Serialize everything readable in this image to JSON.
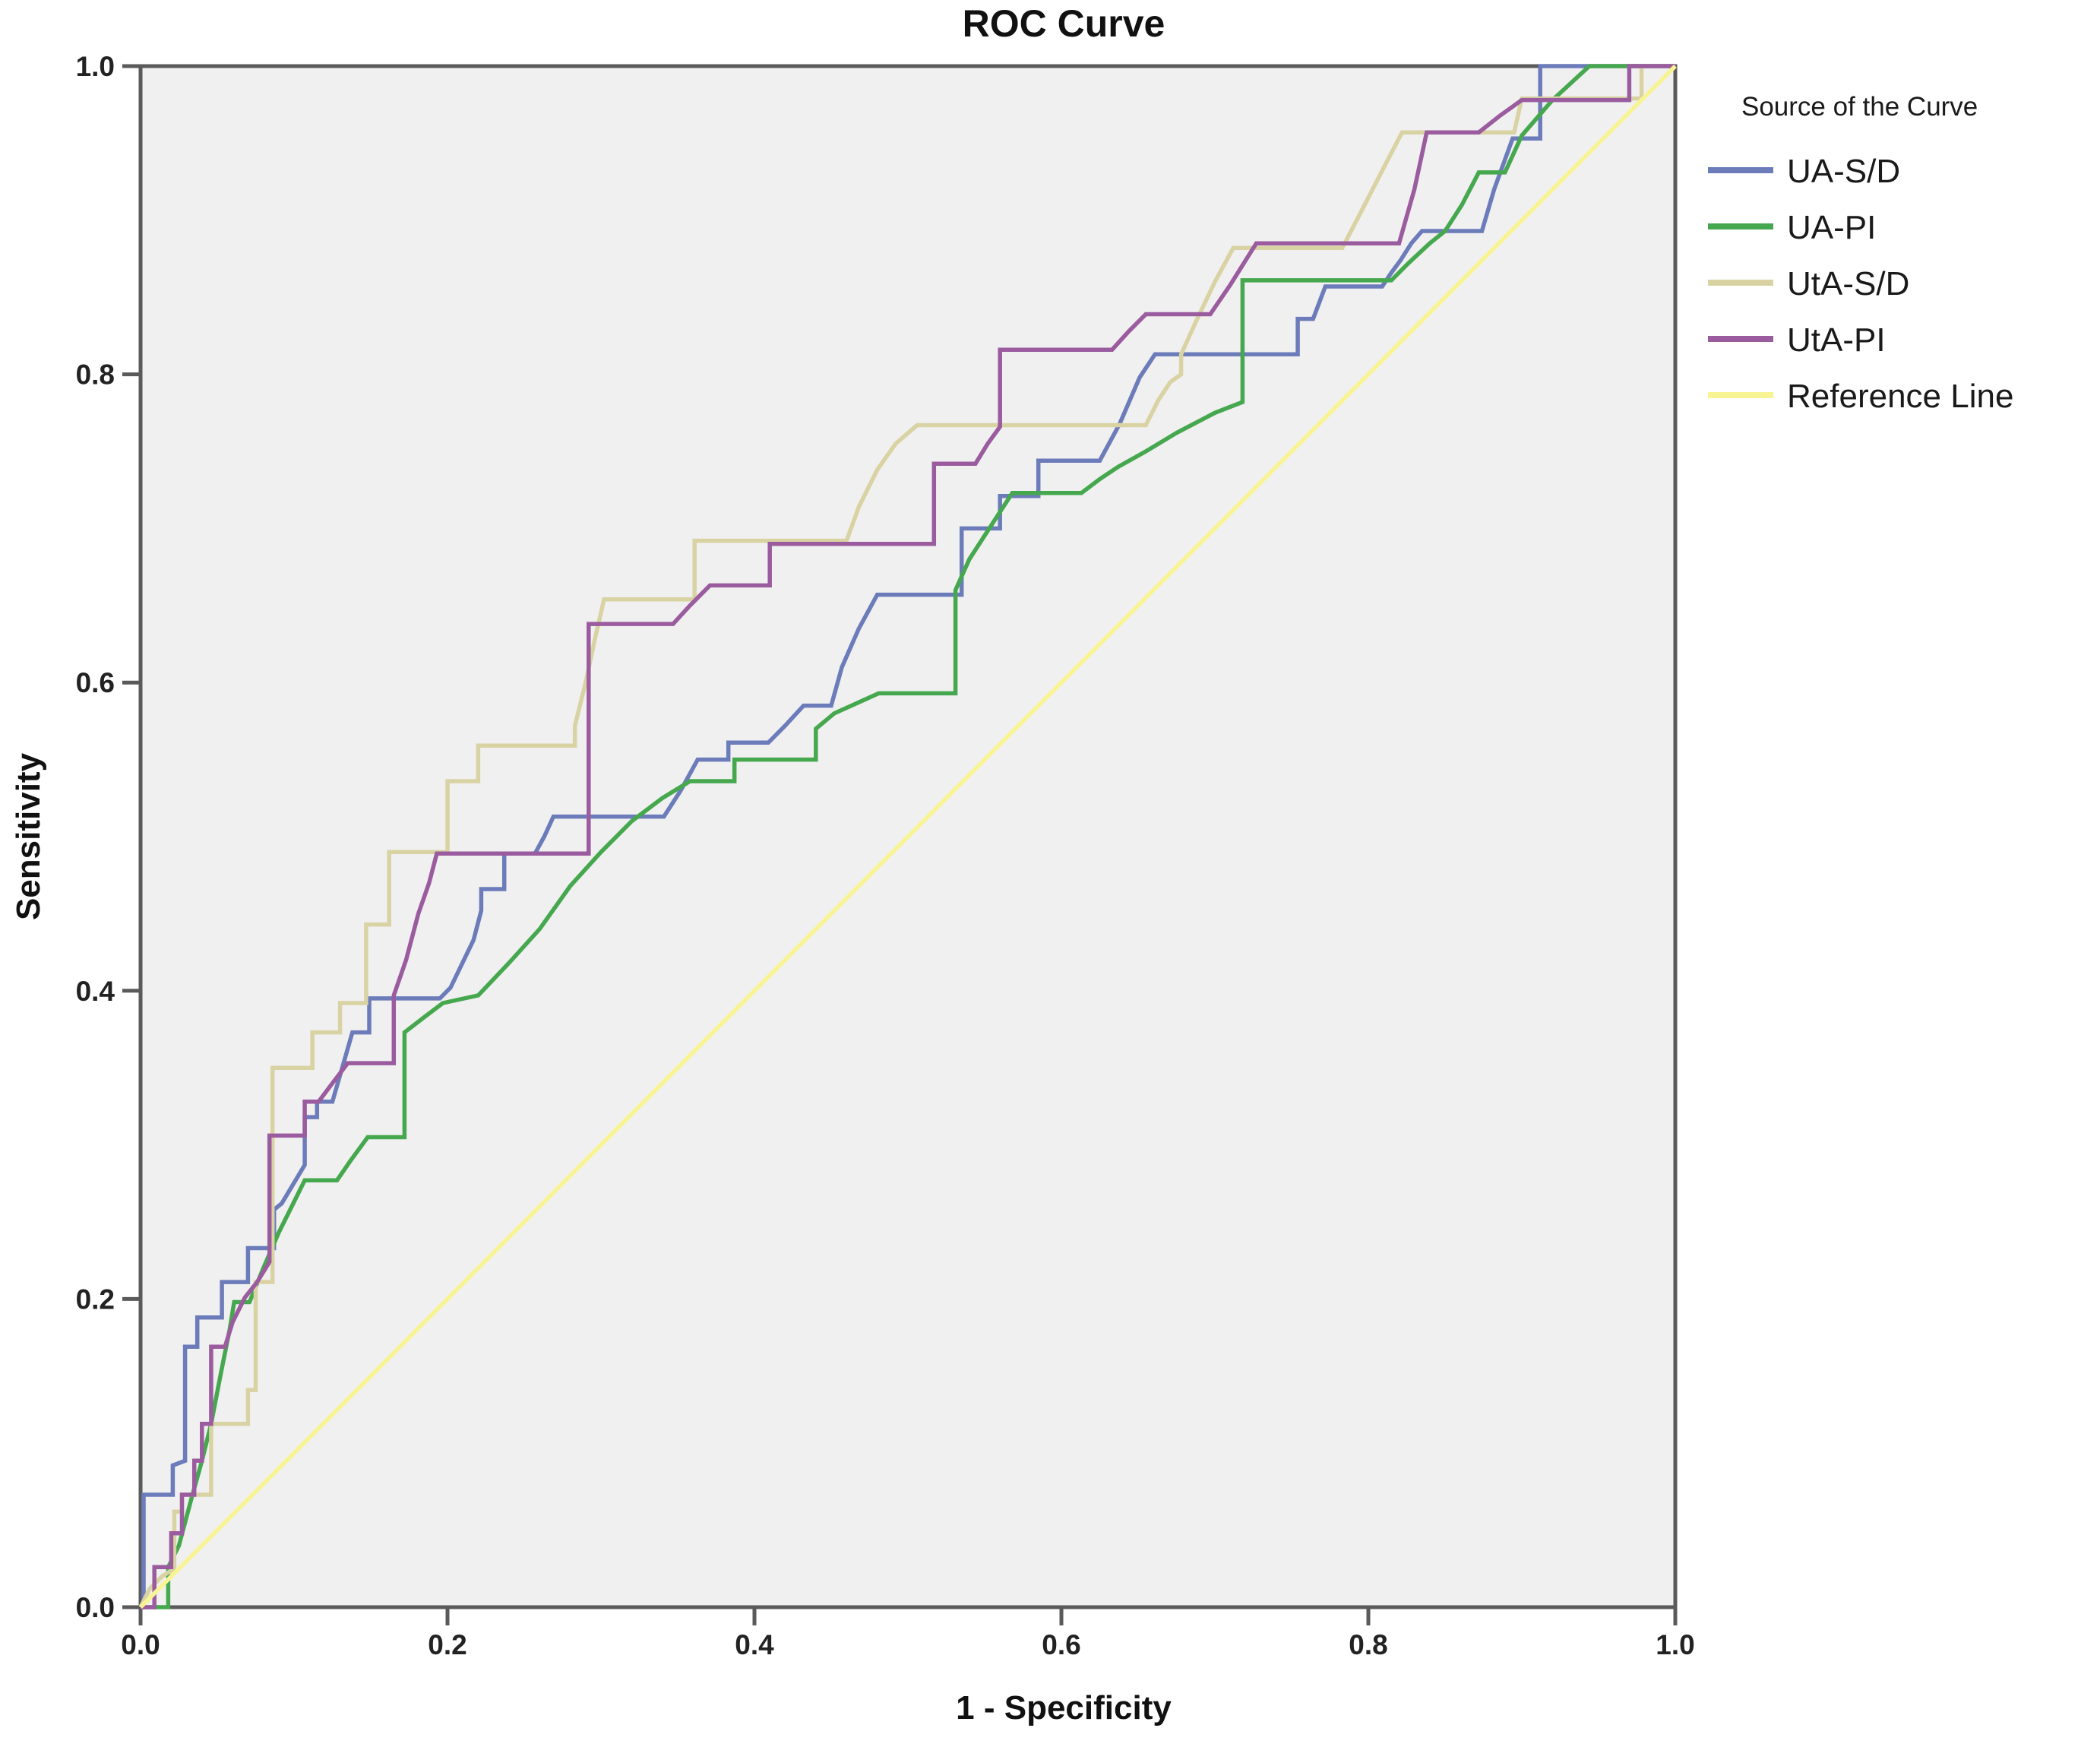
{
  "chart_data": {
    "type": "line",
    "subtype": "roc-step-curves",
    "title": "ROC Curve",
    "xlabel": "1 - Specificity",
    "ylabel": "Sensitivity",
    "xlim": [
      0.0,
      1.0
    ],
    "ylim": [
      0.0,
      1.0
    ],
    "x_ticks": [
      0.0,
      0.2,
      0.4,
      0.6,
      0.8,
      1.0
    ],
    "y_ticks": [
      0.0,
      0.2,
      0.4,
      0.6,
      0.8,
      1.0
    ],
    "x_tick_labels": [
      "0.0",
      "0.2",
      "0.4",
      "0.6",
      "0.8",
      "1.0"
    ],
    "y_tick_labels": [
      "0.0",
      "0.2",
      "0.4",
      "0.6",
      "0.8",
      "1.0"
    ],
    "grid": false,
    "plot_background": "#f0f0f0",
    "border_color": "#5a5a5a",
    "legend_position": "right",
    "legend_title": "Source of the Curve",
    "series": [
      {
        "name": "UA-S/D",
        "color": "#6c7cba",
        "points": [
          [
            0,
            0
          ],
          [
            0.002,
            0
          ],
          [
            0.002,
            0.073
          ],
          [
            0.021,
            0.073
          ],
          [
            0.021,
            0.092
          ],
          [
            0.029,
            0.095
          ],
          [
            0.029,
            0.169
          ],
          [
            0.037,
            0.169
          ],
          [
            0.037,
            0.188
          ],
          [
            0.053,
            0.188
          ],
          [
            0.053,
            0.211
          ],
          [
            0.07,
            0.211
          ],
          [
            0.07,
            0.233
          ],
          [
            0.087,
            0.233
          ],
          [
            0.087,
            0.258
          ],
          [
            0.092,
            0.262
          ],
          [
            0.107,
            0.287
          ],
          [
            0.107,
            0.318
          ],
          [
            0.115,
            0.318
          ],
          [
            0.115,
            0.328
          ],
          [
            0.125,
            0.328
          ],
          [
            0.132,
            0.352
          ],
          [
            0.138,
            0.373
          ],
          [
            0.149,
            0.373
          ],
          [
            0.149,
            0.395
          ],
          [
            0.195,
            0.395
          ],
          [
            0.202,
            0.402
          ],
          [
            0.217,
            0.433
          ],
          [
            0.222,
            0.452
          ],
          [
            0.222,
            0.466
          ],
          [
            0.237,
            0.466
          ],
          [
            0.237,
            0.489
          ],
          [
            0.257,
            0.489
          ],
          [
            0.263,
            0.5
          ],
          [
            0.269,
            0.513
          ],
          [
            0.341,
            0.513
          ],
          [
            0.352,
            0.53
          ],
          [
            0.363,
            0.55
          ],
          [
            0.383,
            0.55
          ],
          [
            0.383,
            0.561
          ],
          [
            0.409,
            0.561
          ],
          [
            0.42,
            0.572
          ],
          [
            0.432,
            0.585
          ],
          [
            0.45,
            0.585
          ],
          [
            0.457,
            0.61
          ],
          [
            0.468,
            0.635
          ],
          [
            0.48,
            0.657
          ],
          [
            0.535,
            0.657
          ],
          [
            0.535,
            0.7
          ],
          [
            0.56,
            0.7
          ],
          [
            0.56,
            0.721
          ],
          [
            0.585,
            0.721
          ],
          [
            0.585,
            0.744
          ],
          [
            0.625,
            0.744
          ],
          [
            0.638,
            0.768
          ],
          [
            0.651,
            0.798
          ],
          [
            0.661,
            0.813
          ],
          [
            0.754,
            0.813
          ],
          [
            0.754,
            0.836
          ],
          [
            0.764,
            0.836
          ],
          [
            0.772,
            0.857
          ],
          [
            0.809,
            0.857
          ],
          [
            0.815,
            0.866
          ],
          [
            0.821,
            0.874
          ],
          [
            0.828,
            0.885
          ],
          [
            0.835,
            0.893
          ],
          [
            0.874,
            0.893
          ],
          [
            0.882,
            0.92
          ],
          [
            0.894,
            0.953
          ],
          [
            0.912,
            0.953
          ],
          [
            0.912,
            1
          ],
          [
            1,
            1
          ]
        ]
      },
      {
        "name": "UA-PI",
        "color": "#46a84e",
        "points": [
          [
            0,
            0
          ],
          [
            0.018,
            0
          ],
          [
            0.018,
            0.026
          ],
          [
            0.025,
            0.04
          ],
          [
            0.033,
            0.07
          ],
          [
            0.04,
            0.095
          ],
          [
            0.046,
            0.119
          ],
          [
            0.052,
            0.15
          ],
          [
            0.058,
            0.18
          ],
          [
            0.061,
            0.198
          ],
          [
            0.071,
            0.198
          ],
          [
            0.08,
            0.22
          ],
          [
            0.09,
            0.243
          ],
          [
            0.1,
            0.263
          ],
          [
            0.107,
            0.277
          ],
          [
            0.128,
            0.277
          ],
          [
            0.137,
            0.29
          ],
          [
            0.148,
            0.305
          ],
          [
            0.172,
            0.305
          ],
          [
            0.172,
            0.373
          ],
          [
            0.185,
            0.383
          ],
          [
            0.197,
            0.392
          ],
          [
            0.22,
            0.397
          ],
          [
            0.24,
            0.418
          ],
          [
            0.26,
            0.44
          ],
          [
            0.28,
            0.468
          ],
          [
            0.3,
            0.49
          ],
          [
            0.32,
            0.51
          ],
          [
            0.34,
            0.525
          ],
          [
            0.358,
            0.536
          ],
          [
            0.387,
            0.536
          ],
          [
            0.387,
            0.55
          ],
          [
            0.44,
            0.55
          ],
          [
            0.44,
            0.57
          ],
          [
            0.452,
            0.58
          ],
          [
            0.481,
            0.593
          ],
          [
            0.531,
            0.593
          ],
          [
            0.531,
            0.66
          ],
          [
            0.54,
            0.68
          ],
          [
            0.553,
            0.7
          ],
          [
            0.568,
            0.723
          ],
          [
            0.613,
            0.723
          ],
          [
            0.625,
            0.732
          ],
          [
            0.637,
            0.74
          ],
          [
            0.655,
            0.75
          ],
          [
            0.675,
            0.762
          ],
          [
            0.7,
            0.775
          ],
          [
            0.718,
            0.782
          ],
          [
            0.718,
            0.861
          ],
          [
            0.815,
            0.861
          ],
          [
            0.826,
            0.872
          ],
          [
            0.84,
            0.885
          ],
          [
            0.85,
            0.893
          ],
          [
            0.861,
            0.91
          ],
          [
            0.872,
            0.931
          ],
          [
            0.889,
            0.931
          ],
          [
            0.9,
            0.955
          ],
          [
            0.92,
            0.978
          ],
          [
            0.944,
            1
          ],
          [
            1,
            1
          ]
        ]
      },
      {
        "name": "UtA-S/D",
        "color": "#d9d3a3",
        "points": [
          [
            0,
            0
          ],
          [
            0.006,
            0.012
          ],
          [
            0.014,
            0.02
          ],
          [
            0.022,
            0.025
          ],
          [
            0.022,
            0.062
          ],
          [
            0.027,
            0.062
          ],
          [
            0.027,
            0.073
          ],
          [
            0.046,
            0.073
          ],
          [
            0.046,
            0.119
          ],
          [
            0.07,
            0.119
          ],
          [
            0.07,
            0.141
          ],
          [
            0.075,
            0.141
          ],
          [
            0.075,
            0.211
          ],
          [
            0.086,
            0.211
          ],
          [
            0.086,
            0.35
          ],
          [
            0.112,
            0.35
          ],
          [
            0.112,
            0.373
          ],
          [
            0.13,
            0.373
          ],
          [
            0.13,
            0.392
          ],
          [
            0.147,
            0.392
          ],
          [
            0.147,
            0.443
          ],
          [
            0.162,
            0.443
          ],
          [
            0.162,
            0.49
          ],
          [
            0.2,
            0.49
          ],
          [
            0.2,
            0.536
          ],
          [
            0.22,
            0.536
          ],
          [
            0.22,
            0.559
          ],
          [
            0.283,
            0.559
          ],
          [
            0.283,
            0.572
          ],
          [
            0.29,
            0.6
          ],
          [
            0.296,
            0.628
          ],
          [
            0.302,
            0.654
          ],
          [
            0.361,
            0.654
          ],
          [
            0.361,
            0.692
          ],
          [
            0.46,
            0.692
          ],
          [
            0.468,
            0.714
          ],
          [
            0.48,
            0.738
          ],
          [
            0.492,
            0.755
          ],
          [
            0.506,
            0.767
          ],
          [
            0.655,
            0.767
          ],
          [
            0.663,
            0.783
          ],
          [
            0.671,
            0.795
          ],
          [
            0.678,
            0.8
          ],
          [
            0.678,
            0.813
          ],
          [
            0.688,
            0.835
          ],
          [
            0.7,
            0.86
          ],
          [
            0.712,
            0.882
          ],
          [
            0.783,
            0.882
          ],
          [
            0.795,
            0.905
          ],
          [
            0.81,
            0.934
          ],
          [
            0.822,
            0.957
          ],
          [
            0.895,
            0.957
          ],
          [
            0.9,
            0.979
          ],
          [
            0.978,
            0.979
          ],
          [
            0.978,
            1
          ],
          [
            1,
            1
          ]
        ]
      },
      {
        "name": "UtA-PI",
        "color": "#9b5b9f",
        "points": [
          [
            0,
            0
          ],
          [
            0.009,
            0
          ],
          [
            0.009,
            0.026
          ],
          [
            0.02,
            0.026
          ],
          [
            0.02,
            0.048
          ],
          [
            0.027,
            0.048
          ],
          [
            0.027,
            0.073
          ],
          [
            0.035,
            0.073
          ],
          [
            0.035,
            0.095
          ],
          [
            0.04,
            0.095
          ],
          [
            0.04,
            0.119
          ],
          [
            0.046,
            0.119
          ],
          [
            0.046,
            0.169
          ],
          [
            0.055,
            0.169
          ],
          [
            0.06,
            0.185
          ],
          [
            0.068,
            0.201
          ],
          [
            0.076,
            0.211
          ],
          [
            0.084,
            0.224
          ],
          [
            0.084,
            0.306
          ],
          [
            0.107,
            0.306
          ],
          [
            0.107,
            0.328
          ],
          [
            0.116,
            0.328
          ],
          [
            0.125,
            0.34
          ],
          [
            0.135,
            0.353
          ],
          [
            0.165,
            0.353
          ],
          [
            0.165,
            0.397
          ],
          [
            0.173,
            0.42
          ],
          [
            0.181,
            0.45
          ],
          [
            0.188,
            0.47
          ],
          [
            0.193,
            0.489
          ],
          [
            0.292,
            0.489
          ],
          [
            0.292,
            0.638
          ],
          [
            0.347,
            0.638
          ],
          [
            0.358,
            0.65
          ],
          [
            0.371,
            0.663
          ],
          [
            0.41,
            0.663
          ],
          [
            0.41,
            0.69
          ],
          [
            0.517,
            0.69
          ],
          [
            0.517,
            0.742
          ],
          [
            0.544,
            0.742
          ],
          [
            0.552,
            0.755
          ],
          [
            0.56,
            0.766
          ],
          [
            0.56,
            0.816
          ],
          [
            0.633,
            0.816
          ],
          [
            0.644,
            0.828
          ],
          [
            0.655,
            0.839
          ],
          [
            0.697,
            0.839
          ],
          [
            0.71,
            0.858
          ],
          [
            0.727,
            0.885
          ],
          [
            0.82,
            0.885
          ],
          [
            0.83,
            0.92
          ],
          [
            0.838,
            0.957
          ],
          [
            0.872,
            0.957
          ],
          [
            0.886,
            0.968
          ],
          [
            0.9,
            0.978
          ],
          [
            0.97,
            0.978
          ],
          [
            0.97,
            1
          ],
          [
            1,
            1
          ]
        ]
      },
      {
        "name": "Reference Line",
        "color": "#f8f493",
        "points": [
          [
            0,
            0
          ],
          [
            1,
            1
          ]
        ]
      }
    ]
  }
}
